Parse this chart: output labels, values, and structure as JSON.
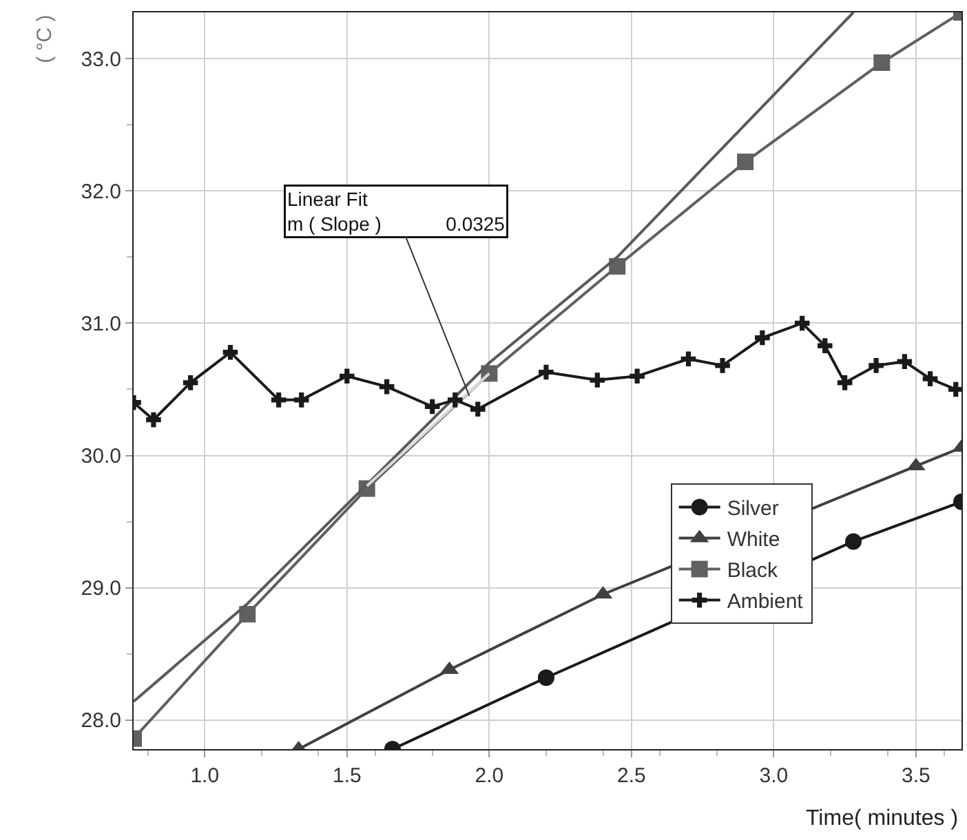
{
  "chart_data": {
    "type": "line",
    "xlabel": "Time( minutes )",
    "ylabel": "( °C )",
    "xlim": [
      0.75,
      3.66
    ],
    "ylim": [
      27.78,
      33.35
    ],
    "xticks": [
      {
        "value": 1.0,
        "label": "1.0"
      },
      {
        "value": 1.5,
        "label": "1.5"
      },
      {
        "value": 2.0,
        "label": "2.0"
      },
      {
        "value": 2.5,
        "label": "2.5"
      },
      {
        "value": 3.0,
        "label": "3.0"
      },
      {
        "value": 3.5,
        "label": "3.5"
      }
    ],
    "yticks": [
      {
        "value": 28.0,
        "label": "28.0"
      },
      {
        "value": 29.0,
        "label": "29.0"
      },
      {
        "value": 30.0,
        "label": "30.0"
      },
      {
        "value": 31.0,
        "label": "31.0"
      },
      {
        "value": 32.0,
        "label": "32.0"
      },
      {
        "value": 33.0,
        "label": "33.0"
      }
    ],
    "grid": true,
    "legend": "bottom right",
    "line_style": "solid",
    "annotations": [
      {
        "text": "Linear Fit\nm ( Slope )            0.0325",
        "x": 1.93,
        "y": 30.45
      }
    ],
    "series": [
      {
        "name": "Silver",
        "color": "#1a1a1a",
        "marker": "circle",
        "x": [
          1.66,
          2.2,
          3.28,
          3.66
        ],
        "values": [
          27.78,
          28.32,
          29.35,
          29.65
        ]
      },
      {
        "name": "White",
        "color": "#404040",
        "marker": "triangle",
        "x": [
          1.33,
          1.86,
          2.4,
          3.5,
          3.66
        ],
        "values": [
          27.78,
          28.38,
          28.95,
          29.92,
          30.06
        ]
      },
      {
        "name": "Black",
        "color": "#606060",
        "marker": "square",
        "x": [
          0.75,
          1.15,
          1.57,
          2.0,
          2.45,
          2.9,
          3.38,
          3.66
        ],
        "values": [
          27.86,
          28.8,
          29.75,
          30.62,
          31.43,
          32.22,
          32.97,
          33.35
        ]
      },
      {
        "color": "#5a5a5a",
        "marker": "none",
        "x": [
          0.75,
          1.15,
          1.57,
          2.0,
          2.45,
          3.28
        ],
        "values": [
          28.14,
          28.88,
          29.78,
          30.7,
          31.5,
          33.35
        ]
      },
      {
        "color": "#d9d9d9",
        "marker": "none",
        "x": [
          1.57,
          2.0
        ],
        "values": [
          29.77,
          30.62
        ]
      },
      {
        "name": "Ambient",
        "color": "#1a1a1a",
        "marker": "cross",
        "x": [
          0.75,
          0.82,
          0.95,
          1.09,
          1.26,
          1.34,
          1.5,
          1.64,
          1.8,
          1.88,
          1.96,
          2.2,
          2.38,
          2.52,
          2.7,
          2.82,
          2.96,
          3.1,
          3.18,
          3.25,
          3.36,
          3.46,
          3.55,
          3.64
        ],
        "values": [
          30.4,
          30.27,
          30.55,
          30.78,
          30.42,
          30.42,
          30.6,
          30.52,
          30.37,
          30.42,
          30.35,
          30.63,
          30.57,
          30.6,
          30.73,
          30.68,
          30.89,
          31.0,
          30.83,
          30.55,
          30.68,
          30.71,
          30.58,
          30.5
        ]
      }
    ]
  }
}
